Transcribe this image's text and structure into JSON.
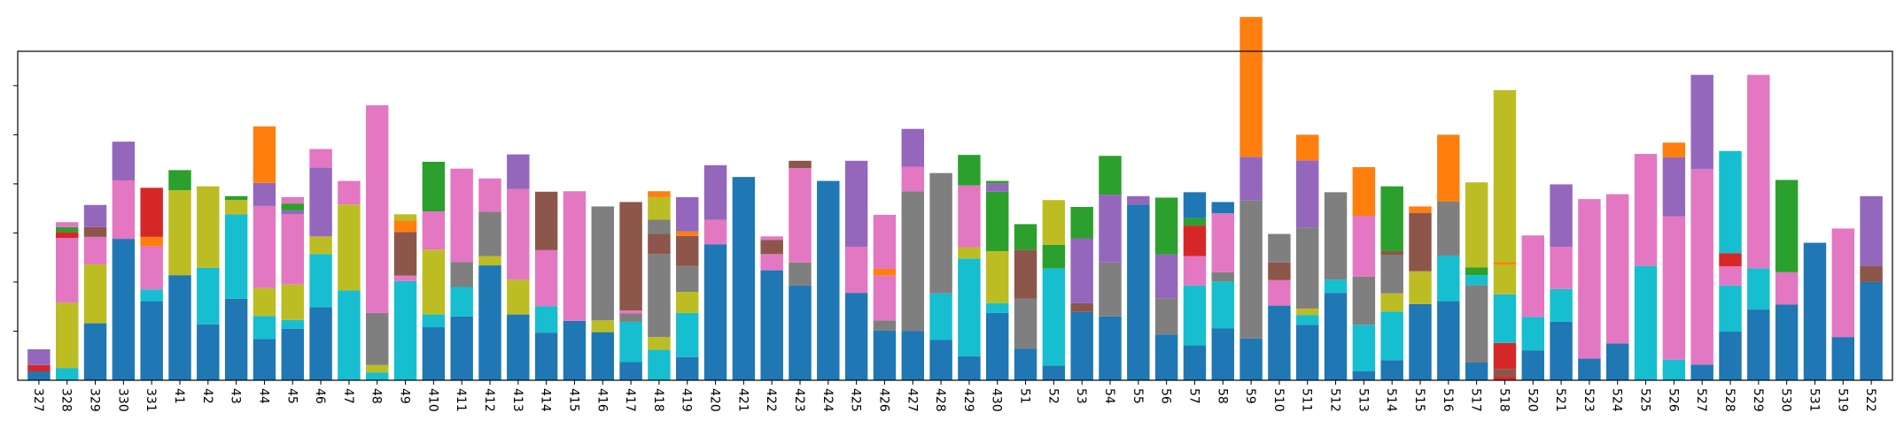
{
  "chart_data": {
    "type": "bar",
    "stacked": true,
    "title": "",
    "xlabel": "",
    "ylabel": "",
    "ylim": [
      0,
      67
    ],
    "y_tick_values": [
      10,
      20,
      30,
      40,
      50,
      60
    ],
    "y_tick_labels": [
      "",
      "",
      "",
      "",
      "",
      ""
    ],
    "grid": false,
    "legend": "none",
    "colors": [
      "#1f77b4",
      "#17becf",
      "#d62728",
      "#bcbd22",
      "#2ca02c",
      "#8c564b",
      "#7f7f7f",
      "#e377c2",
      "#9467bd",
      "#ff7f0e"
    ],
    "categories": [
      "327",
      "328",
      "329",
      "330",
      "331",
      "41",
      "42",
      "43",
      "44",
      "45",
      "46",
      "47",
      "48",
      "49",
      "410",
      "411",
      "412",
      "413",
      "414",
      "415",
      "416",
      "417",
      "418",
      "419",
      "420",
      "421",
      "422",
      "423",
      "424",
      "425",
      "426",
      "427",
      "428",
      "429",
      "430",
      "51",
      "52",
      "53",
      "54",
      "55",
      "56",
      "57",
      "58",
      "59",
      "510",
      "511",
      "512",
      "513",
      "514",
      "515",
      "516",
      "517",
      "518",
      "520",
      "521",
      "523",
      "524",
      "525",
      "526",
      "527",
      "528",
      "529",
      "530",
      "531",
      "519",
      "522"
    ],
    "bars": [
      [
        [
          "#1f77b4",
          1.8
        ],
        [
          "#d62728",
          1.3
        ],
        [
          "#9467bd",
          3.2
        ]
      ],
      [
        [
          "#17becf",
          2.5
        ],
        [
          "#bcbd22",
          13.3
        ],
        [
          "#e377c2",
          13.2
        ],
        [
          "#d62728",
          1.2
        ],
        [
          "#2ca02c",
          1.0
        ],
        [
          "#e377c2",
          1.0
        ]
      ],
      [
        [
          "#1f77b4",
          11.6
        ],
        [
          "#bcbd22",
          12.0
        ],
        [
          "#e377c2",
          5.6
        ],
        [
          "#8c564b",
          2.0
        ],
        [
          "#9467bd",
          4.5
        ]
      ],
      [
        [
          "#1f77b4",
          28.8
        ],
        [
          "#e377c2",
          11.9
        ],
        [
          "#9467bd",
          7.9
        ]
      ],
      [
        [
          "#1f77b4",
          16.1
        ],
        [
          "#17becf",
          2.4
        ],
        [
          "#e377c2",
          8.8
        ],
        [
          "#ff7f0e",
          1.9
        ],
        [
          "#d62728",
          10.0
        ]
      ],
      [
        [
          "#1f77b4",
          21.4
        ],
        [
          "#bcbd22",
          17.3
        ],
        [
          "#2ca02c",
          4.1
        ]
      ],
      [
        [
          "#1f77b4",
          11.4
        ],
        [
          "#17becf",
          11.5
        ],
        [
          "#bcbd22",
          16.6
        ]
      ],
      [
        [
          "#1f77b4",
          16.6
        ],
        [
          "#17becf",
          17.2
        ],
        [
          "#bcbd22",
          2.9
        ],
        [
          "#2ca02c",
          0.8
        ]
      ],
      [
        [
          "#1f77b4",
          8.4
        ],
        [
          "#17becf",
          4.7
        ],
        [
          "#bcbd22",
          5.7
        ],
        [
          "#e377c2",
          16.7
        ],
        [
          "#9467bd",
          4.7
        ],
        [
          "#ff7f0e",
          11.5
        ]
      ],
      [
        [
          "#1f77b4",
          10.5
        ],
        [
          "#17becf",
          1.8
        ],
        [
          "#bcbd22",
          7.2
        ],
        [
          "#e377c2",
          14.3
        ],
        [
          "#9467bd",
          0.8
        ],
        [
          "#2ca02c",
          1.4
        ],
        [
          "#e377c2",
          1.3
        ]
      ],
      [
        [
          "#1f77b4",
          14.9
        ],
        [
          "#17becf",
          10.8
        ],
        [
          "#bcbd22",
          3.6
        ],
        [
          "#9467bd",
          14.0
        ],
        [
          "#e377c2",
          3.8
        ]
      ],
      [
        [
          "#17becf",
          18.3
        ],
        [
          "#bcbd22",
          17.5
        ],
        [
          "#e377c2",
          4.8
        ]
      ],
      [
        [
          "#17becf",
          1.6
        ],
        [
          "#bcbd22",
          1.5
        ],
        [
          "#7f7f7f",
          10.6
        ],
        [
          "#e377c2",
          42.3
        ]
      ],
      [
        [
          "#17becf",
          20.2
        ],
        [
          "#e377c2",
          1.1
        ],
        [
          "#8c564b",
          8.9
        ],
        [
          "#ff7f0e",
          2.3
        ],
        [
          "#bcbd22",
          1.3
        ]
      ],
      [
        [
          "#1f77b4",
          10.8
        ],
        [
          "#17becf",
          2.6
        ],
        [
          "#bcbd22",
          13.2
        ],
        [
          "#e377c2",
          7.8
        ],
        [
          "#2ca02c",
          10.1
        ]
      ],
      [
        [
          "#1f77b4",
          13.0
        ],
        [
          "#17becf",
          6.0
        ],
        [
          "#7f7f7f",
          5.1
        ],
        [
          "#e377c2",
          19.0
        ]
      ],
      [
        [
          "#1f77b4",
          23.4
        ],
        [
          "#bcbd22",
          1.9
        ],
        [
          "#7f7f7f",
          9.0
        ],
        [
          "#e377c2",
          6.8
        ]
      ],
      [
        [
          "#1f77b4",
          13.4
        ],
        [
          "#bcbd22",
          7.1
        ],
        [
          "#e377c2",
          18.5
        ],
        [
          "#9467bd",
          7.0
        ]
      ],
      [
        [
          "#1f77b4",
          9.7
        ],
        [
          "#17becf",
          5.4
        ],
        [
          "#e377c2",
          11.4
        ],
        [
          "#8c564b",
          11.9
        ]
      ],
      [
        [
          "#1f77b4",
          12.1
        ],
        [
          "#e377c2",
          26.4
        ]
      ],
      [
        [
          "#1f77b4",
          9.8
        ],
        [
          "#bcbd22",
          2.4
        ],
        [
          "#7f7f7f",
          23.2
        ]
      ],
      [
        [
          "#1f77b4",
          3.7
        ],
        [
          "#17becf",
          8.2
        ],
        [
          "#7f7f7f",
          1.7
        ],
        [
          "#e377c2",
          0.6
        ],
        [
          "#8c564b",
          22.1
        ]
      ],
      [
        [
          "#17becf",
          6.2
        ],
        [
          "#bcbd22",
          2.6
        ],
        [
          "#7f7f7f",
          16.9
        ],
        [
          "#8c564b",
          4.1
        ],
        [
          "#7f7f7f",
          2.9
        ],
        [
          "#bcbd22",
          4.6
        ],
        [
          "#ff7f0e",
          1.2
        ]
      ],
      [
        [
          "#1f77b4",
          4.7
        ],
        [
          "#17becf",
          9.0
        ],
        [
          "#bcbd22",
          4.3
        ],
        [
          "#7f7f7f",
          5.3
        ],
        [
          "#8c564b",
          6.1
        ],
        [
          "#ff7f0e",
          0.9
        ],
        [
          "#9467bd",
          7.0
        ]
      ],
      [
        [
          "#1f77b4",
          27.7
        ],
        [
          "#e377c2",
          5.0
        ],
        [
          "#9467bd",
          11.1
        ]
      ],
      [
        [
          "#1f77b4",
          41.4
        ]
      ],
      [
        [
          "#1f77b4",
          22.4
        ],
        [
          "#e377c2",
          3.3
        ],
        [
          "#8c564b",
          2.9
        ],
        [
          "#e377c2",
          0.7
        ]
      ],
      [
        [
          "#1f77b4",
          19.3
        ],
        [
          "#7f7f7f",
          4.7
        ],
        [
          "#e377c2",
          19.2
        ],
        [
          "#8c564b",
          1.5
        ]
      ],
      [
        [
          "#1f77b4",
          40.6
        ]
      ],
      [
        [
          "#1f77b4",
          17.8
        ],
        [
          "#e377c2",
          9.4
        ],
        [
          "#9467bd",
          17.5
        ]
      ],
      [
        [
          "#1f77b4",
          10.1
        ],
        [
          "#7f7f7f",
          2.1
        ],
        [
          "#e377c2",
          9.1
        ],
        [
          "#ff7f0e",
          1.4
        ],
        [
          "#e377c2",
          11.0
        ]
      ],
      [
        [
          "#1f77b4",
          10.0
        ],
        [
          "#7f7f7f",
          28.5
        ],
        [
          "#e377c2",
          5.0
        ],
        [
          "#9467bd",
          7.7
        ]
      ],
      [
        [
          "#1f77b4",
          8.2
        ],
        [
          "#17becf",
          9.5
        ],
        [
          "#7f7f7f",
          24.5
        ]
      ],
      [
        [
          "#1f77b4",
          4.9
        ],
        [
          "#17becf",
          19.9
        ],
        [
          "#bcbd22",
          2.3
        ],
        [
          "#e377c2",
          12.6
        ],
        [
          "#2ca02c",
          6.2
        ]
      ],
      [
        [
          "#1f77b4",
          13.7
        ],
        [
          "#17becf",
          2.0
        ],
        [
          "#bcbd22",
          10.6
        ],
        [
          "#2ca02c",
          12.1
        ],
        [
          "#9467bd",
          1.7
        ],
        [
          "#2ca02c",
          0.5
        ]
      ],
      [
        [
          "#1f77b4",
          6.4
        ],
        [
          "#7f7f7f",
          10.2
        ],
        [
          "#8c564b",
          10.0
        ],
        [
          "#2ca02c",
          5.2
        ]
      ],
      [
        [
          "#1f77b4",
          3.0
        ],
        [
          "#17becf",
          19.8
        ],
        [
          "#2ca02c",
          4.8
        ],
        [
          "#bcbd22",
          9.1
        ]
      ],
      [
        [
          "#1f77b4",
          13.9
        ],
        [
          "#8c564b",
          1.8
        ],
        [
          "#9467bd",
          13.2
        ],
        [
          "#2ca02c",
          6.4
        ]
      ],
      [
        [
          "#1f77b4",
          13.0
        ],
        [
          "#7f7f7f",
          11.0
        ],
        [
          "#9467bd",
          13.8
        ],
        [
          "#2ca02c",
          7.9
        ]
      ],
      [
        [
          "#1f77b4",
          35.8
        ],
        [
          "#9467bd",
          1.7
        ]
      ],
      [
        [
          "#1f77b4",
          9.3
        ],
        [
          "#7f7f7f",
          7.4
        ],
        [
          "#9467bd",
          8.9
        ],
        [
          "#2ca02c",
          11.6
        ]
      ],
      [
        [
          "#1f77b4",
          7.1
        ],
        [
          "#17becf",
          12.2
        ],
        [
          "#e377c2",
          6.0
        ],
        [
          "#d62728",
          6.2
        ],
        [
          "#2ca02c",
          1.5
        ],
        [
          "#1f77b4",
          5.3
        ]
      ],
      [
        [
          "#1f77b4",
          10.6
        ],
        [
          "#17becf",
          9.5
        ],
        [
          "#7f7f7f",
          1.9
        ],
        [
          "#e377c2",
          12.0
        ],
        [
          "#1f77b4",
          2.3
        ]
      ],
      [
        [
          "#1f77b4",
          8.5
        ],
        [
          "#7f7f7f",
          28.2
        ],
        [
          "#9467bd",
          8.8
        ],
        [
          "#ff7f0e",
          28.5
        ]
      ],
      [
        [
          "#1f77b4",
          15.2
        ],
        [
          "#e377c2",
          5.2
        ],
        [
          "#8c564b",
          3.6
        ],
        [
          "#7f7f7f",
          5.8
        ]
      ],
      [
        [
          "#1f77b4",
          11.3
        ],
        [
          "#17becf",
          2.0
        ],
        [
          "#bcbd22",
          1.3
        ],
        [
          "#7f7f7f",
          16.5
        ],
        [
          "#9467bd",
          13.7
        ],
        [
          "#ff7f0e",
          5.2
        ]
      ],
      [
        [
          "#1f77b4",
          17.8
        ],
        [
          "#17becf",
          2.7
        ],
        [
          "#7f7f7f",
          17.8
        ]
      ],
      [
        [
          "#1f77b4",
          1.8
        ],
        [
          "#17becf",
          9.5
        ],
        [
          "#7f7f7f",
          9.8
        ],
        [
          "#e377c2",
          12.4
        ],
        [
          "#ff7f0e",
          9.9
        ]
      ],
      [
        [
          "#1f77b4",
          4.1
        ],
        [
          "#17becf",
          9.9
        ],
        [
          "#bcbd22",
          3.7
        ],
        [
          "#7f7f7f",
          7.8
        ],
        [
          "#8c564b",
          0.8
        ],
        [
          "#2ca02c",
          13.2
        ]
      ],
      [
        [
          "#1f77b4",
          15.5
        ],
        [
          "#bcbd22",
          6.7
        ],
        [
          "#8c564b",
          11.9
        ],
        [
          "#ff7f0e",
          1.3
        ]
      ],
      [
        [
          "#1f77b4",
          16.1
        ],
        [
          "#17becf",
          9.3
        ],
        [
          "#7f7f7f",
          11.0
        ],
        [
          "#ff7f0e",
          13.6
        ]
      ],
      [
        [
          "#1f77b4",
          3.6
        ],
        [
          "#7f7f7f",
          15.8
        ],
        [
          "#17becf",
          2.0
        ],
        [
          "#2ca02c",
          1.6
        ],
        [
          "#bcbd22",
          17.3
        ]
      ],
      [
        [
          "#d62728",
          0.8
        ],
        [
          "#8c564b",
          1.5
        ],
        [
          "#d62728",
          5.3
        ],
        [
          "#17becf",
          9.9
        ],
        [
          "#bcbd22",
          6.1
        ],
        [
          "#ff7f0e",
          0.5
        ],
        [
          "#bcbd22",
          35.0
        ]
      ],
      [
        [
          "#1f77b4",
          6.1
        ],
        [
          "#17becf",
          6.8
        ],
        [
          "#e377c2",
          16.6
        ]
      ],
      [
        [
          "#1f77b4",
          11.9
        ],
        [
          "#17becf",
          6.7
        ],
        [
          "#e377c2",
          8.6
        ],
        [
          "#9467bd",
          12.7
        ]
      ],
      [
        [
          "#1f77b4",
          4.4
        ],
        [
          "#e377c2",
          32.5
        ]
      ],
      [
        [
          "#1f77b4",
          7.5
        ],
        [
          "#e377c2",
          30.4
        ]
      ],
      [
        [
          "#17becf",
          23.3
        ],
        [
          "#e377c2",
          22.8
        ]
      ],
      [
        [
          "#17becf",
          4.2
        ],
        [
          "#e377c2",
          29.2
        ],
        [
          "#9467bd",
          12.0
        ],
        [
          "#ff7f0e",
          3.0
        ]
      ],
      [
        [
          "#1f77b4",
          3.2
        ],
        [
          "#e377c2",
          39.8
        ],
        [
          "#9467bd",
          19.2
        ]
      ],
      [
        [
          "#1f77b4",
          9.9
        ],
        [
          "#17becf",
          9.4
        ],
        [
          "#e377c2",
          3.9
        ],
        [
          "#d62728",
          2.7
        ],
        [
          "#17becf",
          20.8
        ]
      ],
      [
        [
          "#1f77b4",
          14.4
        ],
        [
          "#17becf",
          8.4
        ],
        [
          "#e377c2",
          39.4
        ]
      ],
      [
        [
          "#1f77b4",
          15.4
        ],
        [
          "#e377c2",
          6.6
        ],
        [
          "#2ca02c",
          18.8
        ]
      ],
      [
        [
          "#1f77b4",
          28.0
        ]
      ],
      [
        [
          "#1f77b4",
          8.8
        ],
        [
          "#e377c2",
          22.1
        ]
      ],
      [
        [
          "#1f77b4",
          20.0
        ],
        [
          "#8c564b",
          3.3
        ],
        [
          "#9467bd",
          14.2
        ]
      ]
    ]
  }
}
